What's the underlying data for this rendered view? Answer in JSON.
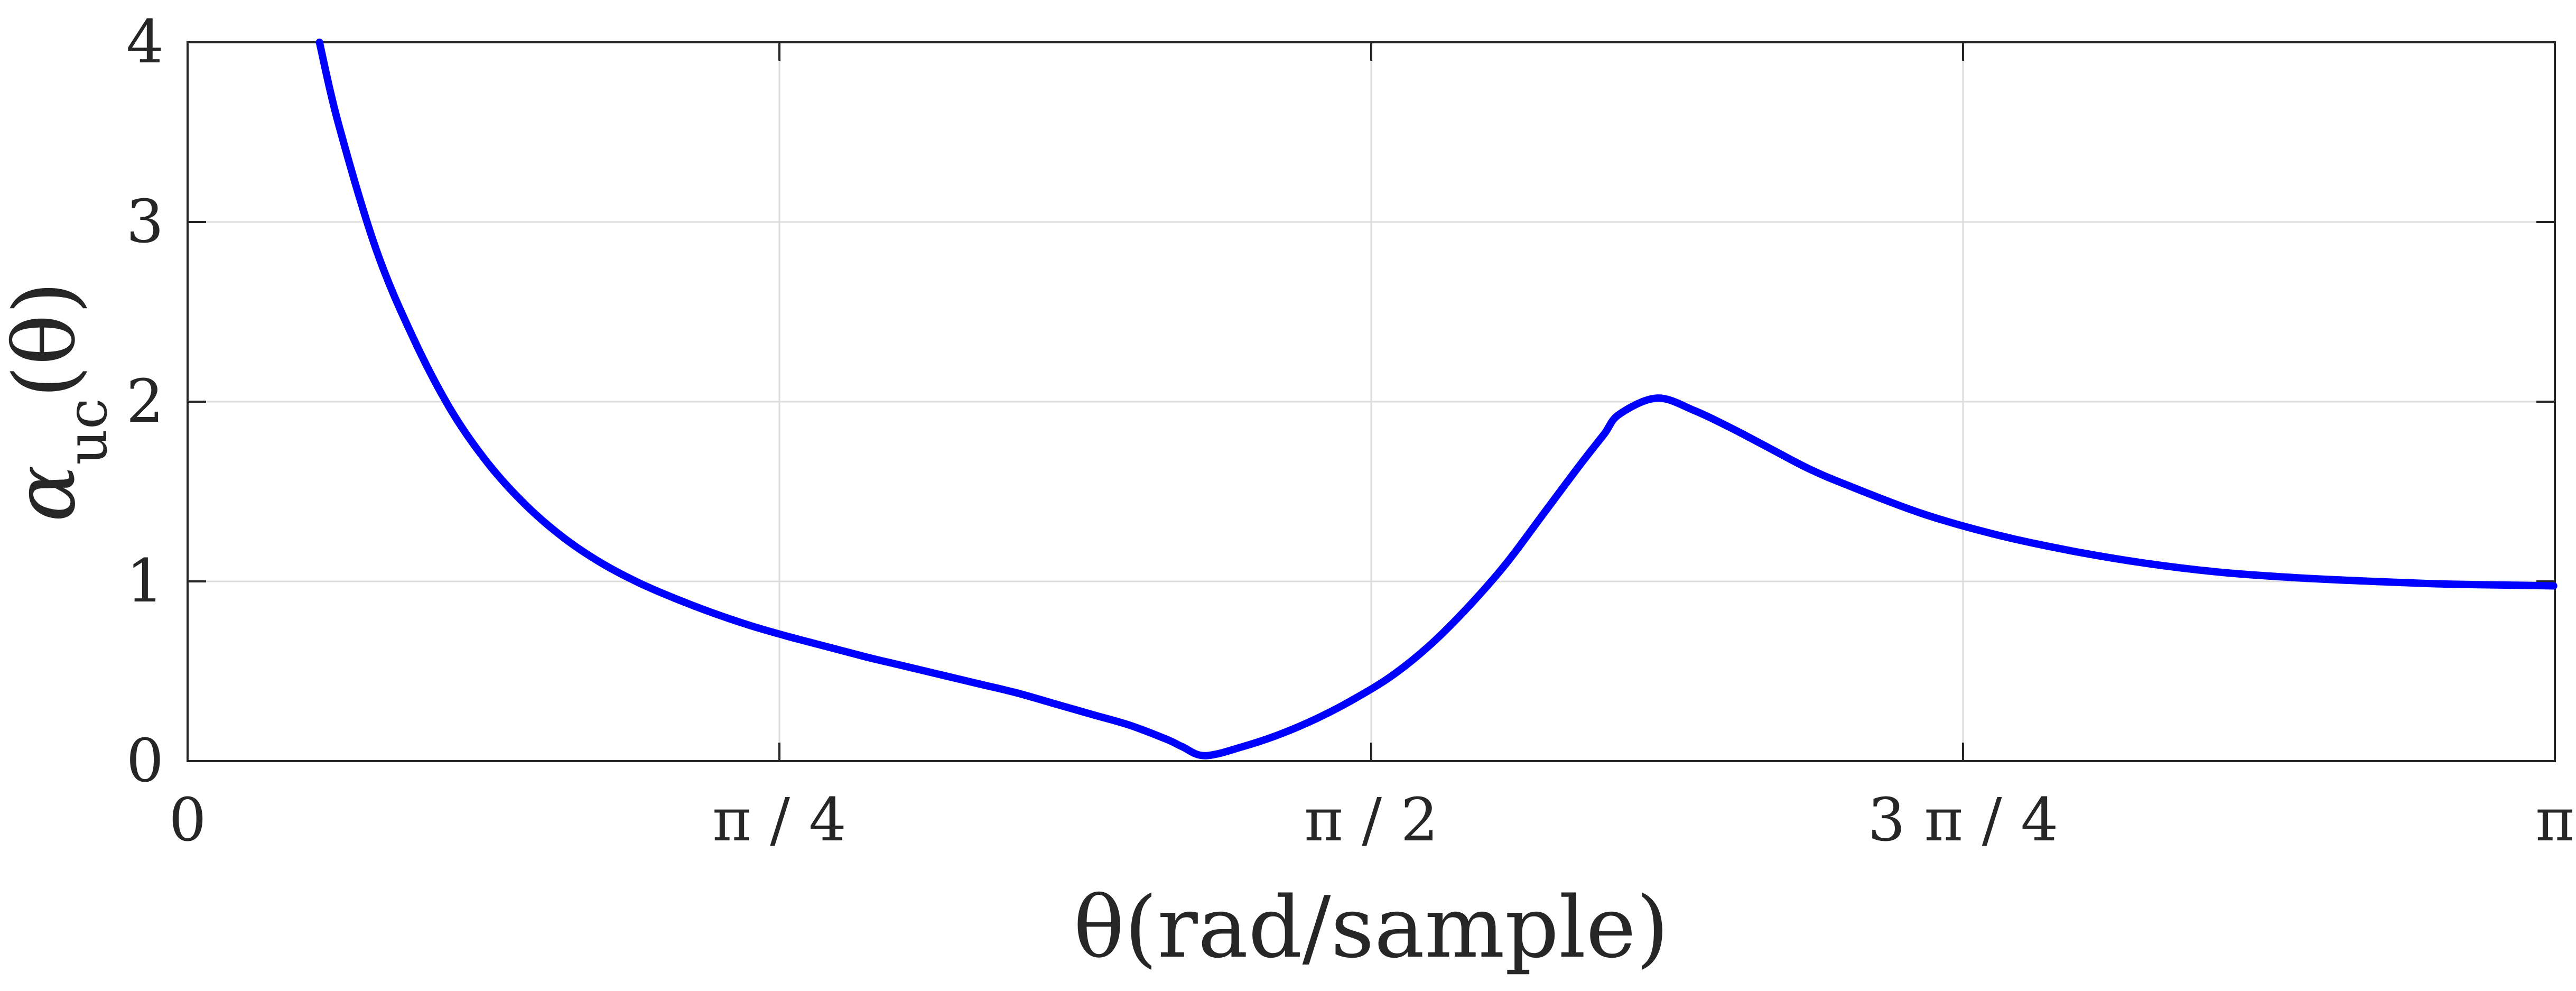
{
  "chart_data": {
    "type": "line",
    "xlabel": "θ(rad/sample)",
    "ylabel": {
      "base": "α",
      "subscript": "uc",
      "suffix": "(θ)"
    },
    "xlim": [
      0,
      3.14159
    ],
    "ylim": [
      0,
      4
    ],
    "x_ticks": [
      {
        "value": 0,
        "label": "0"
      },
      {
        "value": 0.7854,
        "label": "π / 4"
      },
      {
        "value": 1.5708,
        "label": "π / 2"
      },
      {
        "value": 2.3562,
        "label": "3 π / 4"
      },
      {
        "value": 3.14159,
        "label": "π"
      }
    ],
    "y_ticks": [
      {
        "value": 0,
        "label": "0"
      },
      {
        "value": 1,
        "label": "1"
      },
      {
        "value": 2,
        "label": "2"
      },
      {
        "value": 3,
        "label": "3"
      },
      {
        "value": 4,
        "label": "4"
      }
    ],
    "grid": true,
    "color": "#0000ff",
    "series": [
      {
        "x": [
          0.175,
          0.2,
          0.25,
          0.3,
          0.35,
          0.4,
          0.45,
          0.5,
          0.55,
          0.6,
          0.65,
          0.7,
          0.75,
          0.8,
          0.85,
          0.9,
          0.95,
          1.0,
          1.05,
          1.1,
          1.15,
          1.2,
          1.25,
          1.3,
          1.32,
          1.35,
          1.4,
          1.45,
          1.5,
          1.55,
          1.6,
          1.65,
          1.7,
          1.75,
          1.8,
          1.85,
          1.88,
          1.9,
          1.95,
          2.0,
          2.05,
          2.1,
          2.15,
          2.2,
          2.3,
          2.4,
          2.5,
          2.6,
          2.7,
          2.8,
          2.9,
          3.0,
          3.1,
          3.14
        ],
        "y": [
          4.0,
          3.55,
          2.85,
          2.35,
          1.95,
          1.65,
          1.42,
          1.24,
          1.1,
          0.99,
          0.9,
          0.82,
          0.75,
          0.69,
          0.635,
          0.58,
          0.53,
          0.48,
          0.43,
          0.38,
          0.32,
          0.26,
          0.2,
          0.12,
          0.08,
          0.03,
          0.08,
          0.15,
          0.24,
          0.35,
          0.48,
          0.65,
          0.86,
          1.1,
          1.38,
          1.66,
          1.82,
          1.93,
          2.02,
          1.95,
          1.85,
          1.74,
          1.63,
          1.54,
          1.38,
          1.26,
          1.17,
          1.1,
          1.05,
          1.02,
          1.0,
          0.985,
          0.978,
          0.975
        ]
      }
    ]
  }
}
